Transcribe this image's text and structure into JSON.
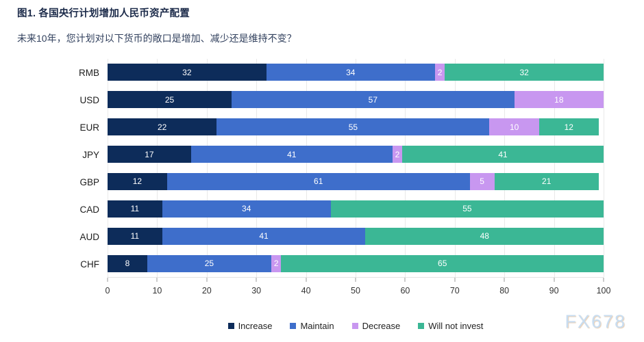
{
  "header": {
    "title": "图1. 各国央行计划增加人民币资产配置",
    "subtitle": "未来10年，您计划对以下货币的敞口是增加、减少还是维持不变？"
  },
  "chart_data": {
    "type": "bar",
    "orientation": "horizontal",
    "stacked": true,
    "title": "图1. 各国央行计划增加人民币资产配置",
    "subtitle": "未来10年，您计划对以下货币的敞口是增加、减少还是维持不变？",
    "categories": [
      "RMB",
      "USD",
      "EUR",
      "JPY",
      "GBP",
      "CAD",
      "AUD",
      "CHF"
    ],
    "series": [
      {
        "name": "Increase",
        "color": "#0d2c5a",
        "values": [
          32,
          25,
          22,
          17,
          12,
          11,
          11,
          8
        ]
      },
      {
        "name": "Maintain",
        "color": "#3e6ecb",
        "values": [
          34,
          57,
          55,
          41,
          61,
          34,
          41,
          25
        ]
      },
      {
        "name": "Decrease",
        "color": "#c897f0",
        "values": [
          2,
          18,
          10,
          2,
          5,
          0,
          0,
          2
        ]
      },
      {
        "name": "Will not invest",
        "color": "#3bb795",
        "values": [
          32,
          0,
          12,
          41,
          21,
          55,
          48,
          65
        ]
      }
    ],
    "xlabel": "",
    "ylabel": "",
    "xlim": [
      0,
      100
    ],
    "xticks": [
      0,
      10,
      20,
      30,
      40,
      50,
      60,
      70,
      80,
      90,
      100
    ],
    "grid": "vertical",
    "legend_position": "bottom",
    "value_labels": "inside-white"
  },
  "watermark": "FX678"
}
